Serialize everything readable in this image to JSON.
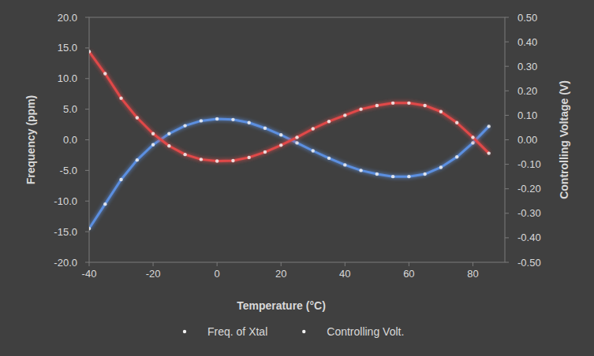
{
  "chart_data": {
    "type": "line",
    "x_label": "Temperature (°C)",
    "y_label": "Frequency (ppm)",
    "y2_label": "Controlling Voltage (V)",
    "x": [
      -40,
      -35,
      -30,
      -25,
      -20,
      -15,
      -10,
      -5,
      0,
      5,
      10,
      15,
      20,
      25,
      30,
      35,
      40,
      45,
      50,
      55,
      60,
      65,
      70,
      75,
      80,
      85
    ],
    "series": [
      {
        "name": "Freq. of Xtal",
        "color": "#5b8fe0",
        "marker": "circle",
        "axis": "y",
        "values": [
          -14.5,
          -10.5,
          -6.5,
          -3.3,
          -0.8,
          1.0,
          2.3,
          3.1,
          3.4,
          3.3,
          2.8,
          1.9,
          0.8,
          -0.5,
          -1.8,
          -3.0,
          -4.1,
          -5.0,
          -5.6,
          -6.0,
          -6.0,
          -5.6,
          -4.5,
          -2.8,
          -0.5,
          2.2
        ]
      },
      {
        "name": "Controlling Volt.",
        "color": "#e04848",
        "marker": "circle",
        "axis": "y2",
        "values": [
          0.36,
          0.27,
          0.17,
          0.09,
          0.025,
          -0.025,
          -0.06,
          -0.08,
          -0.087,
          -0.085,
          -0.072,
          -0.05,
          -0.022,
          0.01,
          0.045,
          0.075,
          0.1,
          0.125,
          0.14,
          0.15,
          0.15,
          0.14,
          0.115,
          0.07,
          0.01,
          -0.055
        ]
      }
    ],
    "xlim": [
      -40,
      90
    ],
    "xticks": [
      -40,
      -20,
      0,
      20,
      40,
      60,
      80
    ],
    "ylim": [
      -20,
      20
    ],
    "yticks": [
      {
        "value": -20,
        "label": "-20.0"
      },
      {
        "value": -15,
        "label": "-15.0"
      },
      {
        "value": -10,
        "label": "-10.0"
      },
      {
        "value": -5,
        "label": "-5.0"
      },
      {
        "value": 0,
        "label": "0.0"
      },
      {
        "value": 5,
        "label": "5.0"
      },
      {
        "value": 10,
        "label": "10.0"
      },
      {
        "value": 15,
        "label": "15.0"
      },
      {
        "value": 20,
        "label": "20.0"
      }
    ],
    "y2lim": [
      -0.5,
      0.5
    ],
    "y2ticks": [
      {
        "value": -0.5,
        "label": "-0.50"
      },
      {
        "value": -0.4,
        "label": "-0.40"
      },
      {
        "value": -0.3,
        "label": "-0.30"
      },
      {
        "value": -0.2,
        "label": "-0.20"
      },
      {
        "value": -0.1,
        "label": "-0.10"
      },
      {
        "value": 0,
        "label": "0.00"
      },
      {
        "value": 0.1,
        "label": "0.10"
      },
      {
        "value": 0.2,
        "label": "0.20"
      },
      {
        "value": 0.3,
        "label": "0.30"
      },
      {
        "value": 0.4,
        "label": "0.40"
      },
      {
        "value": 0.5,
        "label": "0.50"
      }
    ],
    "grid": false,
    "legend": "bottom"
  }
}
